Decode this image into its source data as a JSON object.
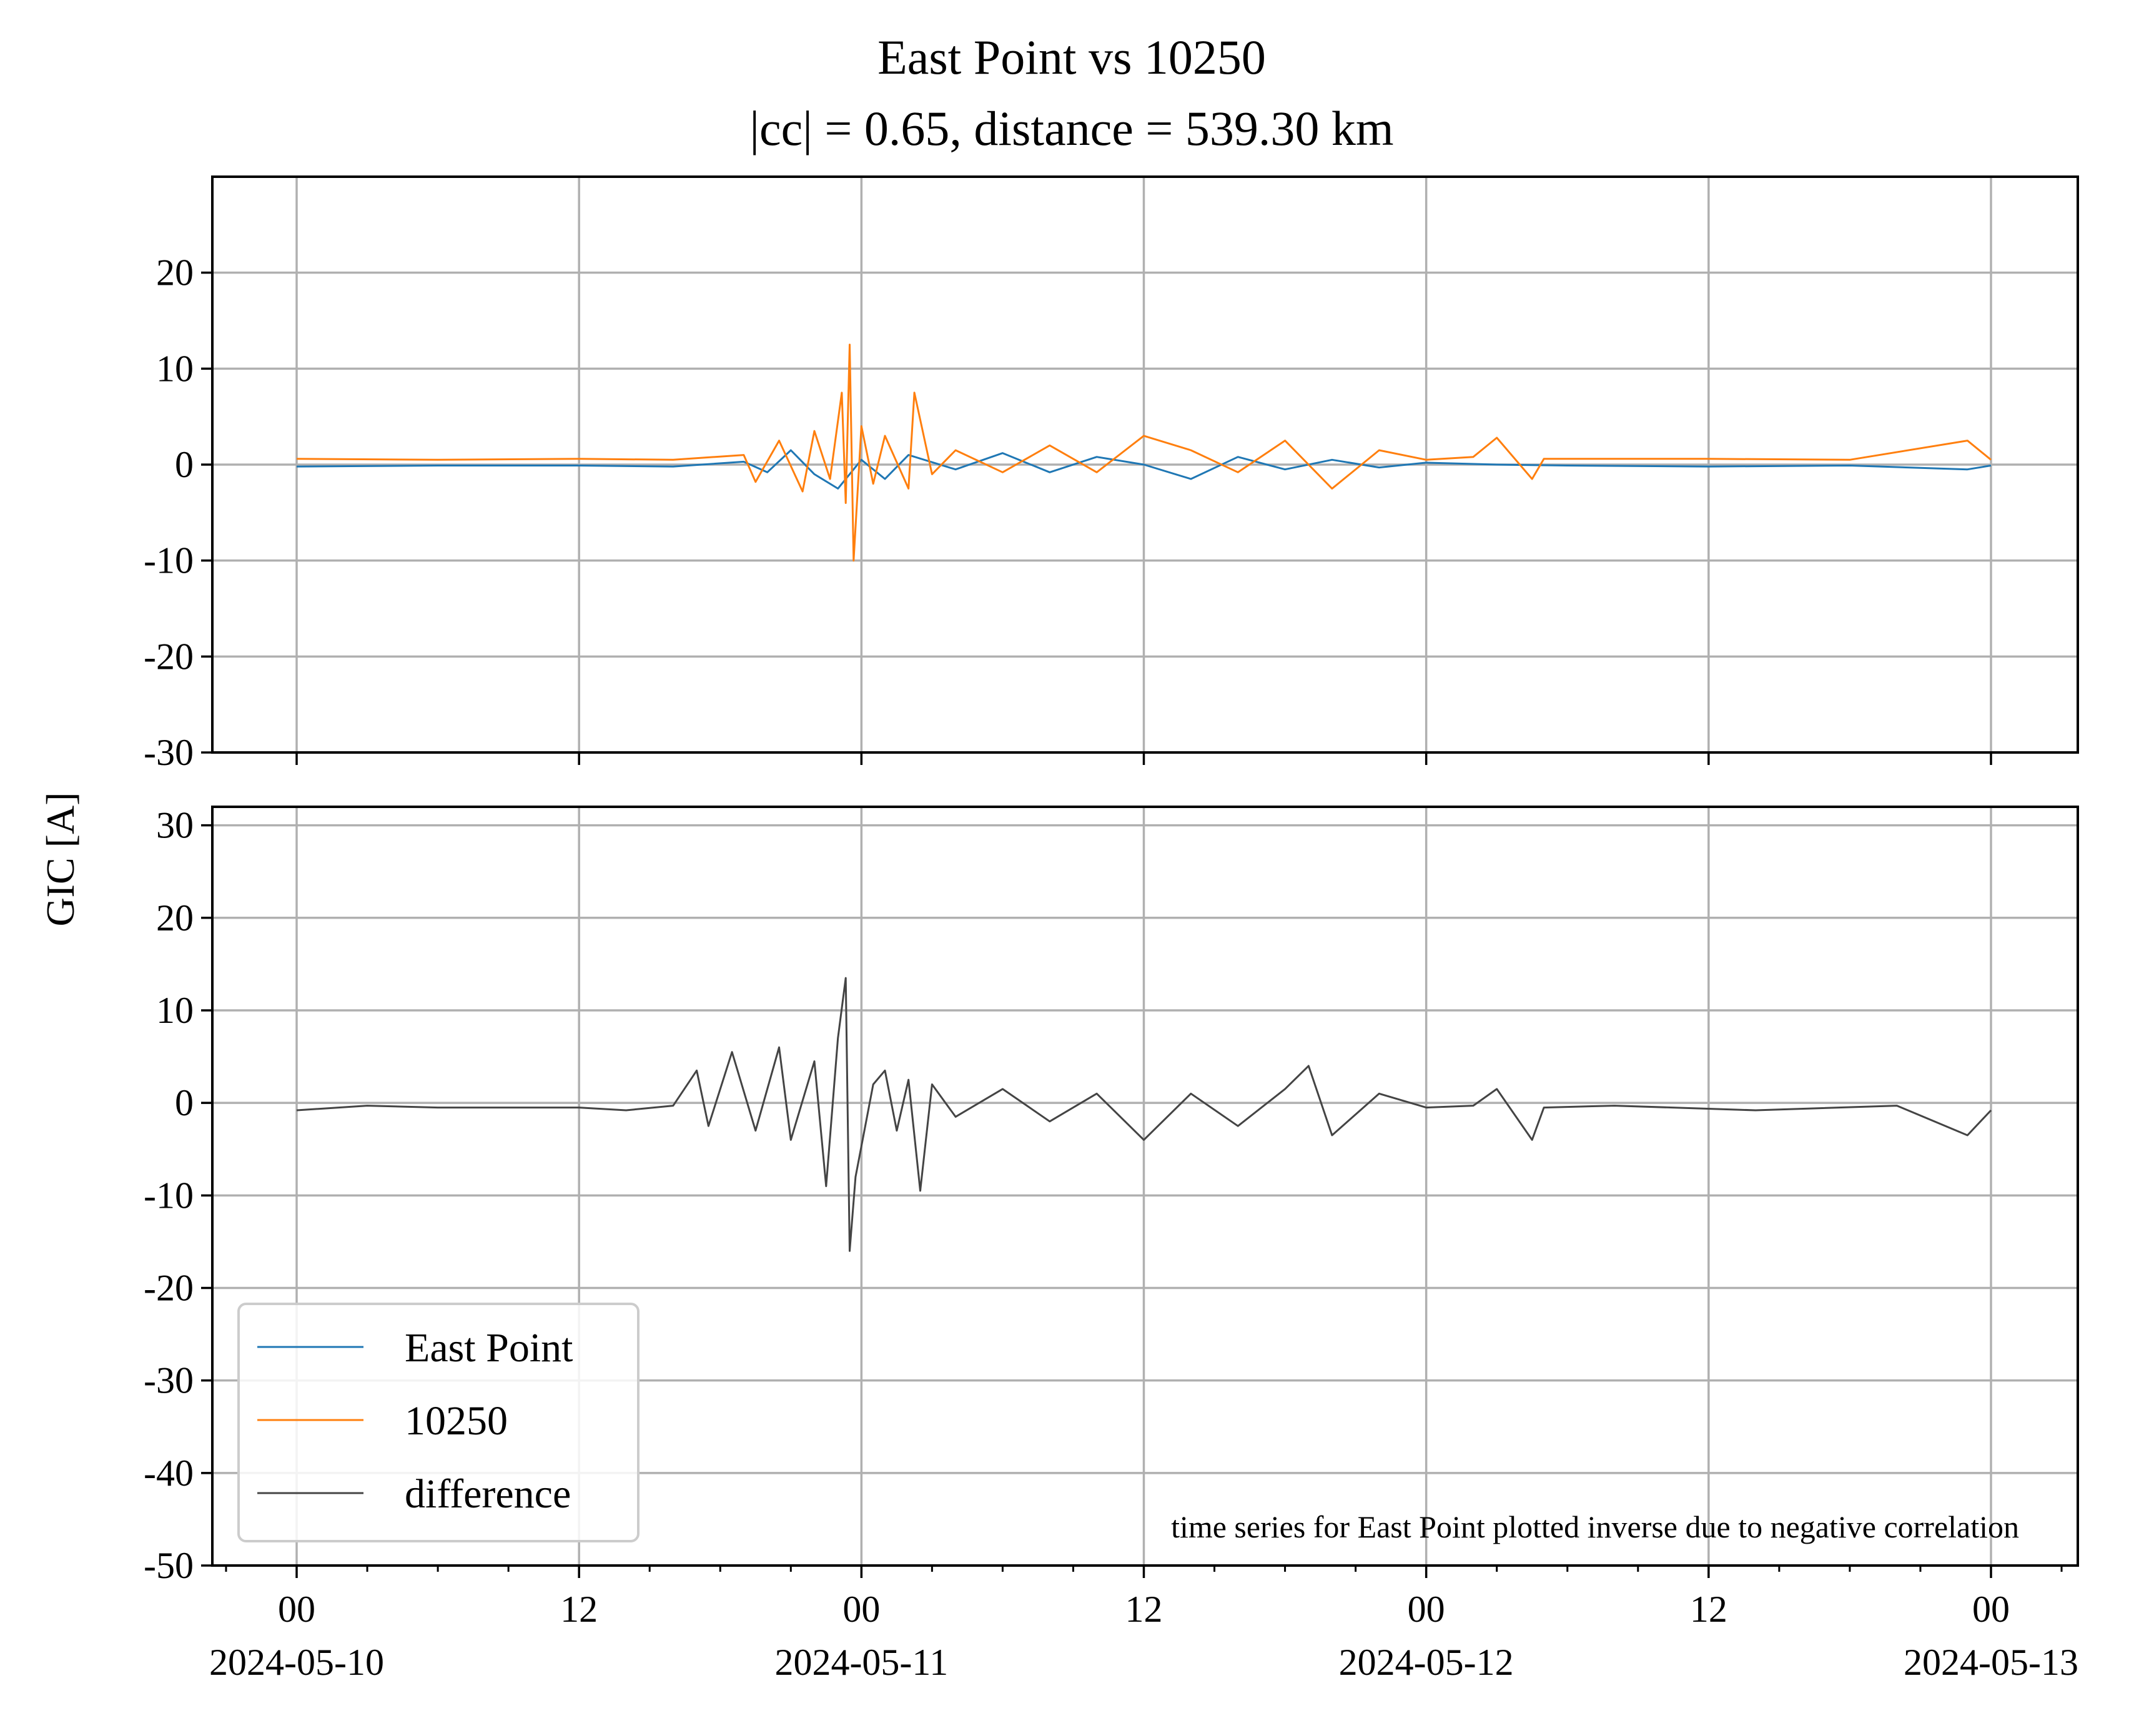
{
  "chart_data": {
    "type": "line",
    "title": "East Point vs 10250",
    "subtitle": "|cc| = 0.65, distance = 539.30 km",
    "ylabel": "GIC [A]",
    "xlabel": "",
    "x_range": [
      "2024-05-10T00:00",
      "2024-05-13T00:00"
    ],
    "x_major_ticks": [
      {
        "t": "2024-05-10T00:00",
        "label": "00",
        "date": "2024-05-10"
      },
      {
        "t": "2024-05-10T12:00",
        "label": "12",
        "date": ""
      },
      {
        "t": "2024-05-11T00:00",
        "label": "00",
        "date": "2024-05-11"
      },
      {
        "t": "2024-05-11T12:00",
        "label": "12",
        "date": ""
      },
      {
        "t": "2024-05-12T00:00",
        "label": "00",
        "date": "2024-05-12"
      },
      {
        "t": "2024-05-12T12:00",
        "label": "12",
        "date": ""
      },
      {
        "t": "2024-05-13T00:00",
        "label": "00",
        "date": "2024-05-13"
      }
    ],
    "grid": true,
    "legend_position": "lower-left",
    "annotation": "time series for East Point plotted inverse due to negative correlation",
    "panels": [
      {
        "name": "top",
        "ylim": [
          -30,
          30
        ],
        "yticks": [
          -30,
          -20,
          -10,
          0,
          10,
          20
        ],
        "ytick_labels": [
          "-30",
          "-20",
          "-10",
          "0",
          "10",
          "20"
        ],
        "series": [
          {
            "name": "East Point",
            "color": "#1f77b4",
            "points": [
              [
                "2024-05-10T00:00",
                -0.2
              ],
              [
                "2024-05-10T06:00",
                -0.1
              ],
              [
                "2024-05-10T12:00",
                -0.1
              ],
              [
                "2024-05-10T16:00",
                -0.2
              ],
              [
                "2024-05-10T19:00",
                0.3
              ],
              [
                "2024-05-10T20:00",
                -0.8
              ],
              [
                "2024-05-10T21:00",
                1.5
              ],
              [
                "2024-05-10T22:00",
                -1.0
              ],
              [
                "2024-05-10T23:00",
                -2.5
              ],
              [
                "2024-05-11T00:00",
                0.5
              ],
              [
                "2024-05-11T01:00",
                -1.5
              ],
              [
                "2024-05-11T02:00",
                1.0
              ],
              [
                "2024-05-11T04:00",
                -0.5
              ],
              [
                "2024-05-11T06:00",
                1.2
              ],
              [
                "2024-05-11T08:00",
                -0.8
              ],
              [
                "2024-05-11T10:00",
                0.8
              ],
              [
                "2024-05-11T12:00",
                0.0
              ],
              [
                "2024-05-11T14:00",
                -1.5
              ],
              [
                "2024-05-11T16:00",
                0.8
              ],
              [
                "2024-05-11T18:00",
                -0.5
              ],
              [
                "2024-05-11T20:00",
                0.5
              ],
              [
                "2024-05-11T22:00",
                -0.3
              ],
              [
                "2024-05-12T00:00",
                0.2
              ],
              [
                "2024-05-12T03:00",
                0.0
              ],
              [
                "2024-05-12T06:00",
                -0.1
              ],
              [
                "2024-05-12T12:00",
                -0.2
              ],
              [
                "2024-05-12T18:00",
                -0.1
              ],
              [
                "2024-05-12T23:00",
                -0.5
              ],
              [
                "2024-05-13T00:00",
                -0.1
              ]
            ]
          },
          {
            "name": "10250",
            "color": "#ff7f0e",
            "points": [
              [
                "2024-05-10T00:00",
                0.6
              ],
              [
                "2024-05-10T06:00",
                0.5
              ],
              [
                "2024-05-10T12:00",
                0.6
              ],
              [
                "2024-05-10T16:00",
                0.5
              ],
              [
                "2024-05-10T19:00",
                1.0
              ],
              [
                "2024-05-10T19:30",
                -1.8
              ],
              [
                "2024-05-10T20:30",
                2.5
              ],
              [
                "2024-05-10T21:30",
                -2.8
              ],
              [
                "2024-05-10T22:00",
                3.5
              ],
              [
                "2024-05-10T22:40",
                -1.5
              ],
              [
                "2024-05-10T23:10",
                7.5
              ],
              [
                "2024-05-10T23:20",
                -4.0
              ],
              [
                "2024-05-10T23:30",
                12.5
              ],
              [
                "2024-05-10T23:40",
                -10.0
              ],
              [
                "2024-05-11T00:00",
                4.0
              ],
              [
                "2024-05-11T00:30",
                -2.0
              ],
              [
                "2024-05-11T01:00",
                3.0
              ],
              [
                "2024-05-11T02:00",
                -2.5
              ],
              [
                "2024-05-11T02:15",
                7.5
              ],
              [
                "2024-05-11T03:00",
                -1.0
              ],
              [
                "2024-05-11T04:00",
                1.5
              ],
              [
                "2024-05-11T06:00",
                -0.8
              ],
              [
                "2024-05-11T08:00",
                2.0
              ],
              [
                "2024-05-11T10:00",
                -0.8
              ],
              [
                "2024-05-11T12:00",
                3.0
              ],
              [
                "2024-05-11T14:00",
                1.5
              ],
              [
                "2024-05-11T16:00",
                -0.8
              ],
              [
                "2024-05-11T18:00",
                2.5
              ],
              [
                "2024-05-11T20:00",
                -2.5
              ],
              [
                "2024-05-11T22:00",
                1.5
              ],
              [
                "2024-05-12T00:00",
                0.5
              ],
              [
                "2024-05-12T02:00",
                0.8
              ],
              [
                "2024-05-12T03:00",
                2.8
              ],
              [
                "2024-05-12T04:30",
                -1.5
              ],
              [
                "2024-05-12T05:00",
                0.6
              ],
              [
                "2024-05-12T12:00",
                0.6
              ],
              [
                "2024-05-12T18:00",
                0.5
              ],
              [
                "2024-05-12T23:00",
                2.5
              ],
              [
                "2024-05-13T00:00",
                0.5
              ]
            ]
          }
        ]
      },
      {
        "name": "bottom",
        "ylim": [
          -50,
          32
        ],
        "yticks": [
          -50,
          -40,
          -30,
          -20,
          -10,
          0,
          10,
          20,
          30
        ],
        "ytick_labels": [
          "-50",
          "-40",
          "-30",
          "-20",
          "-10",
          "0",
          "10",
          "20",
          "30"
        ],
        "series": [
          {
            "name": "difference",
            "color": "#444444",
            "points": [
              [
                "2024-05-10T00:00",
                -0.8
              ],
              [
                "2024-05-10T03:00",
                -0.3
              ],
              [
                "2024-05-10T06:00",
                -0.5
              ],
              [
                "2024-05-10T12:00",
                -0.5
              ],
              [
                "2024-05-10T14:00",
                -0.8
              ],
              [
                "2024-05-10T16:00",
                -0.3
              ],
              [
                "2024-05-10T17:00",
                3.5
              ],
              [
                "2024-05-10T17:30",
                -2.5
              ],
              [
                "2024-05-10T18:30",
                5.5
              ],
              [
                "2024-05-10T19:30",
                -3.0
              ],
              [
                "2024-05-10T20:30",
                6.0
              ],
              [
                "2024-05-10T21:00",
                -4.0
              ],
              [
                "2024-05-10T22:00",
                4.5
              ],
              [
                "2024-05-10T22:30",
                -9.0
              ],
              [
                "2024-05-10T23:00",
                7.0
              ],
              [
                "2024-05-10T23:20",
                13.5
              ],
              [
                "2024-05-10T23:30",
                -16.0
              ],
              [
                "2024-05-10T23:45",
                -8.0
              ],
              [
                "2024-05-11T00:30",
                2.0
              ],
              [
                "2024-05-11T01:00",
                3.5
              ],
              [
                "2024-05-11T01:30",
                -3.0
              ],
              [
                "2024-05-11T02:00",
                2.5
              ],
              [
                "2024-05-11T02:30",
                -9.5
              ],
              [
                "2024-05-11T03:00",
                2.0
              ],
              [
                "2024-05-11T04:00",
                -1.5
              ],
              [
                "2024-05-11T06:00",
                1.5
              ],
              [
                "2024-05-11T08:00",
                -2.0
              ],
              [
                "2024-05-11T10:00",
                1.0
              ],
              [
                "2024-05-11T12:00",
                -4.0
              ],
              [
                "2024-05-11T14:00",
                1.0
              ],
              [
                "2024-05-11T16:00",
                -2.5
              ],
              [
                "2024-05-11T18:00",
                1.5
              ],
              [
                "2024-05-11T19:00",
                4.0
              ],
              [
                "2024-05-11T20:00",
                -3.5
              ],
              [
                "2024-05-11T22:00",
                1.0
              ],
              [
                "2024-05-12T00:00",
                -0.5
              ],
              [
                "2024-05-12T02:00",
                -0.3
              ],
              [
                "2024-05-12T03:00",
                1.5
              ],
              [
                "2024-05-12T04:30",
                -4.0
              ],
              [
                "2024-05-12T05:00",
                -0.5
              ],
              [
                "2024-05-12T08:00",
                -0.3
              ],
              [
                "2024-05-12T14:00",
                -0.8
              ],
              [
                "2024-05-12T20:00",
                -0.3
              ],
              [
                "2024-05-12T23:00",
                -3.5
              ],
              [
                "2024-05-13T00:00",
                -0.8
              ]
            ]
          }
        ]
      }
    ]
  }
}
